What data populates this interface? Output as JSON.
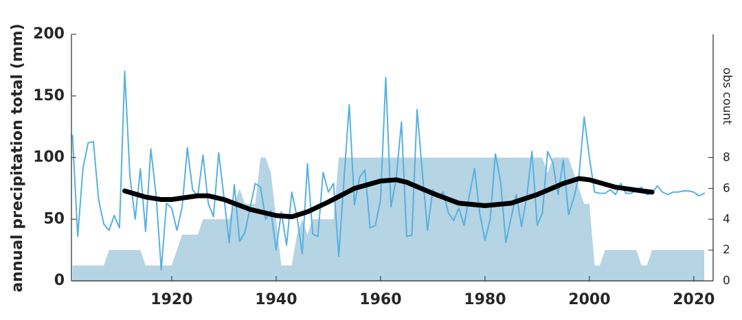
{
  "chart_data": {
    "type": "line",
    "ylabel": "annual precipitation total (mm)",
    "y2label": "obs count",
    "xlim": [
      1900.8,
      2023.7
    ],
    "xticks": [
      1920,
      1940,
      1960,
      1980,
      2000,
      2020
    ],
    "ylim": [
      0,
      200
    ],
    "yticks": [
      0,
      50,
      100,
      150,
      200
    ],
    "y2lim": [
      0,
      16
    ],
    "y2ticks": [
      0,
      2,
      4,
      6,
      8
    ],
    "series": [
      {
        "type": "area",
        "axis": "y2",
        "color": "#b5d4e4",
        "x": [
          1901,
          1907,
          1908,
          1914,
          1915,
          1918,
          1919,
          1920,
          1921,
          1922,
          1925,
          1926,
          1931,
          1932,
          1933,
          1934,
          1935,
          1936,
          1937,
          1938,
          1939,
          1940,
          1941,
          1943,
          1944,
          1945,
          1946,
          1947,
          1950,
          1951,
          1952,
          1991,
          1992,
          1993,
          1996,
          1997,
          1998,
          1999,
          2000,
          2001,
          2002,
          2003,
          2009,
          2010,
          2011,
          2012,
          2022
        ],
        "values": [
          1,
          1,
          2,
          2,
          1,
          1,
          1,
          1,
          2,
          3,
          3,
          4,
          4,
          5,
          6,
          5,
          5,
          5,
          8,
          8,
          7,
          4,
          1,
          1,
          3,
          4,
          3,
          4,
          4,
          4,
          8,
          8,
          7,
          8,
          8,
          7,
          6,
          5,
          5,
          1,
          1,
          2,
          2,
          1,
          1,
          2,
          2
        ]
      },
      {
        "type": "line",
        "color": "#56b0e0",
        "x": [
          1901,
          1902,
          1903,
          1904,
          1905,
          1906,
          1907,
          1908,
          1909,
          1910,
          1911,
          1912,
          1913,
          1914,
          1915,
          1916,
          1917,
          1918,
          1919,
          1920,
          1921,
          1922,
          1923,
          1924,
          1925,
          1926,
          1927,
          1928,
          1929,
          1930,
          1931,
          1932,
          1933,
          1934,
          1935,
          1936,
          1937,
          1938,
          1939,
          1940,
          1941,
          1942,
          1943,
          1944,
          1945,
          1946,
          1947,
          1948,
          1949,
          1950,
          1951,
          1952,
          1953,
          1954,
          1955,
          1956,
          1957,
          1958,
          1959,
          1960,
          1961,
          1962,
          1963,
          1964,
          1965,
          1966,
          1967,
          1968,
          1969,
          1970,
          1971,
          1972,
          1973,
          1974,
          1975,
          1976,
          1977,
          1978,
          1979,
          1980,
          1981,
          1982,
          1983,
          1984,
          1985,
          1986,
          1987,
          1988,
          1989,
          1990,
          1991,
          1992,
          1993,
          1994,
          1995,
          1996,
          1997,
          1998,
          1999,
          2000,
          2001,
          2002,
          2003,
          2004,
          2005,
          2006,
          2007,
          2008,
          2009,
          2010,
          2011,
          2012,
          2013,
          2014,
          2015,
          2016,
          2017,
          2018,
          2019,
          2020,
          2021,
          2022
        ],
        "values": [
          118,
          36,
          91,
          112,
          113,
          66,
          46,
          41,
          53,
          43,
          170,
          85,
          50,
          91,
          40,
          107,
          70,
          9,
          63,
          59,
          41,
          60,
          108,
          74,
          69,
          102,
          63,
          52,
          104,
          68,
          31,
          78,
          32,
          39,
          59,
          79,
          76,
          50,
          57,
          25,
          56,
          29,
          72,
          52,
          22,
          95,
          38,
          36,
          88,
          72,
          79,
          20,
          82,
          143,
          62,
          84,
          90,
          43,
          45,
          66,
          165,
          60,
          83,
          129,
          36,
          37,
          139,
          88,
          41,
          74,
          68,
          72,
          55,
          49,
          59,
          45,
          69,
          91,
          55,
          33,
          50,
          103,
          80,
          31,
          51,
          70,
          44,
          68,
          105,
          45,
          55,
          105,
          96,
          70,
          98,
          54,
          67,
          85,
          133,
          100,
          72,
          71,
          71,
          74,
          70,
          79,
          71,
          71,
          74,
          76,
          70,
          71,
          77,
          72,
          70,
          72,
          72,
          73,
          73,
          72,
          69,
          71
        ]
      },
      {
        "type": "line",
        "color": "#000000",
        "x": [
          1911,
          1915,
          1918,
          1920,
          1925,
          1927,
          1930,
          1935,
          1940,
          1943,
          1946,
          1950,
          1955,
          1960,
          1963,
          1965,
          1970,
          1975,
          1980,
          1985,
          1990,
          1995,
          1998,
          2000,
          2005,
          2010,
          2012
        ],
        "values": [
          73,
          68,
          66,
          66,
          69,
          69,
          66,
          58,
          53,
          52,
          56,
          64,
          75,
          81,
          82,
          80,
          71,
          63,
          61,
          63,
          70,
          79,
          83,
          82,
          76,
          73,
          72
        ]
      }
    ]
  }
}
